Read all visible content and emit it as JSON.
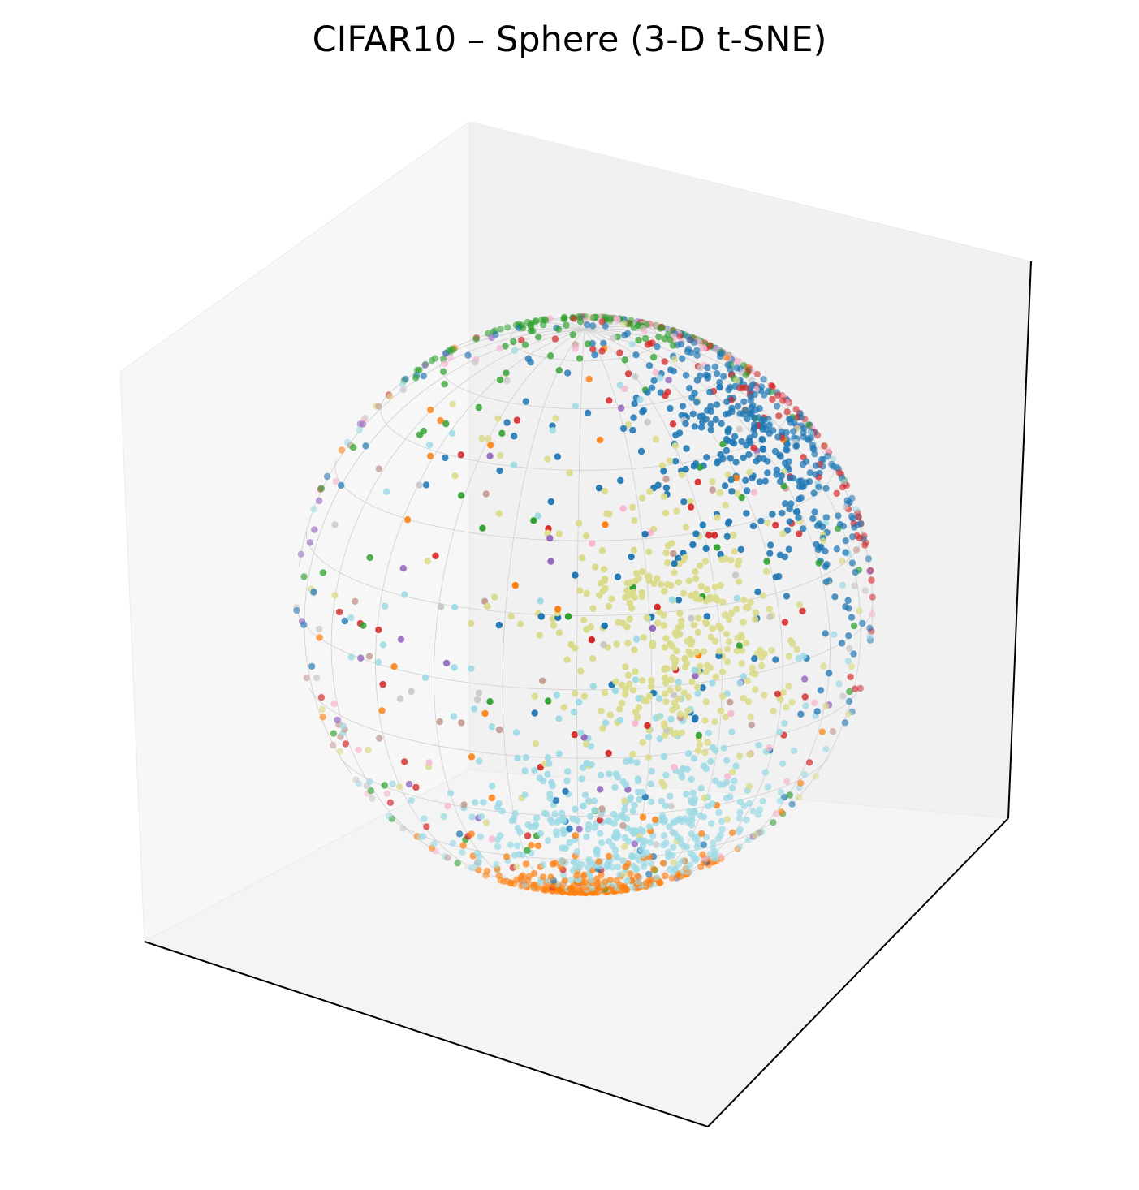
{
  "chart_data": {
    "type": "scatter",
    "projection": "3d",
    "title": "CIFAR10 – Sphere (3-D t-SNE)",
    "xlabel": "",
    "ylabel": "",
    "zlabel": "",
    "ticks": "hidden",
    "grid": false,
    "legend": "none",
    "surface": "unit sphere, light gray wireframe",
    "clusters": [
      {
        "color": "#2ca02c",
        "region": "upper-left cap",
        "center": [
          -0.3,
          0.45,
          0.84
        ],
        "spread": 0.3,
        "count": 520
      },
      {
        "color": "#1f77b4",
        "region": "upper-right",
        "center": [
          0.7,
          0.05,
          0.7
        ],
        "spread": 0.3,
        "count": 430
      },
      {
        "color": "#9467bd",
        "region": "left limb",
        "center": [
          -0.95,
          0.25,
          0.2
        ],
        "spread": 0.22,
        "count": 320
      },
      {
        "color": "#dbdb8d",
        "region": "right limb",
        "center": [
          0.78,
          -0.6,
          0.15
        ],
        "spread": 0.24,
        "count": 360
      },
      {
        "color": "#9edae5",
        "region": "lower-right",
        "center": [
          0.55,
          -0.58,
          -0.6
        ],
        "spread": 0.28,
        "count": 470
      },
      {
        "color": "#ff7f0e",
        "region": "bottom",
        "center": [
          0.2,
          -0.25,
          -0.95
        ],
        "spread": 0.2,
        "count": 360
      },
      {
        "color": "#c7c7c7",
        "region": "lower-left",
        "center": [
          -0.78,
          0.3,
          -0.52
        ],
        "spread": 0.25,
        "count": 360
      },
      {
        "color": "#c49c94",
        "region": "center-left",
        "center": [
          -0.22,
          0.9,
          -0.25
        ],
        "spread": 0.25,
        "count": 380
      },
      {
        "color": "#d62728",
        "region": "center",
        "center": [
          0.15,
          0.55,
          0.28
        ],
        "spread": 0.4,
        "count": 560
      },
      {
        "color": "#f7b6d2",
        "region": "upper-center",
        "center": [
          0.0,
          0.6,
          0.72
        ],
        "spread": 0.26,
        "count": 320
      }
    ]
  }
}
